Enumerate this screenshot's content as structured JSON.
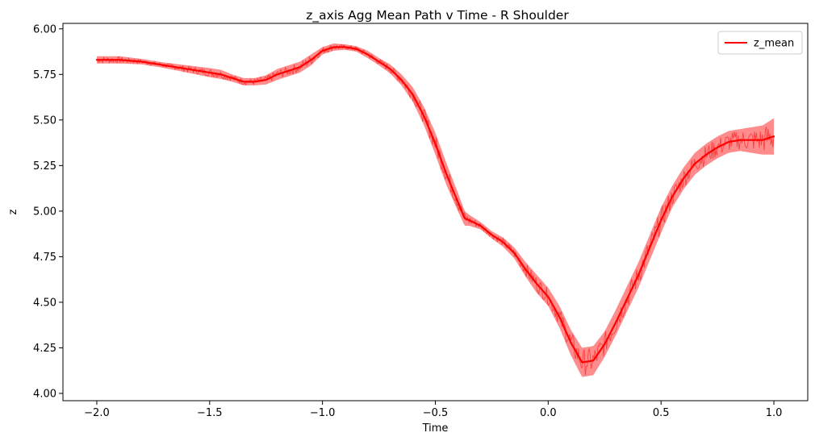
{
  "chart_data": {
    "type": "line",
    "title": "z_axis Agg Mean Path v Time - R Shoulder",
    "xlabel": "Time",
    "ylabel": "z",
    "xlim": [
      -2.15,
      1.15
    ],
    "ylim": [
      3.96,
      6.03
    ],
    "x_ticks": [
      -2.0,
      -1.5,
      -1.0,
      -0.5,
      0.0,
      0.5,
      1.0
    ],
    "x_tick_labels": [
      "−2.0",
      "−1.5",
      "−1.0",
      "−0.5",
      "0.0",
      "0.5",
      "1.0"
    ],
    "y_ticks": [
      4.0,
      4.25,
      4.5,
      4.75,
      5.0,
      5.25,
      5.5,
      5.75,
      6.0
    ],
    "y_tick_labels": [
      "4.00",
      "4.25",
      "4.50",
      "4.75",
      "5.00",
      "5.25",
      "5.50",
      "5.75",
      "6.00"
    ],
    "grid": false,
    "legend_position": "top-right",
    "series": [
      {
        "name": "z_mean",
        "color": "#ff0000",
        "x": [
          -2.0,
          -1.9,
          -1.8,
          -1.7,
          -1.6,
          -1.5,
          -1.45,
          -1.4,
          -1.35,
          -1.3,
          -1.25,
          -1.2,
          -1.15,
          -1.1,
          -1.05,
          -1.0,
          -0.95,
          -0.9,
          -0.85,
          -0.8,
          -0.75,
          -0.7,
          -0.65,
          -0.6,
          -0.55,
          -0.5,
          -0.45,
          -0.4,
          -0.37,
          -0.35,
          -0.3,
          -0.25,
          -0.2,
          -0.15,
          -0.1,
          -0.05,
          0.0,
          0.05,
          0.1,
          0.15,
          0.2,
          0.25,
          0.3,
          0.35,
          0.4,
          0.45,
          0.5,
          0.55,
          0.6,
          0.65,
          0.7,
          0.75,
          0.8,
          0.85,
          0.9,
          0.95,
          1.0
        ],
        "y": [
          5.83,
          5.83,
          5.82,
          5.8,
          5.78,
          5.76,
          5.75,
          5.73,
          5.71,
          5.71,
          5.72,
          5.75,
          5.77,
          5.79,
          5.83,
          5.88,
          5.9,
          5.9,
          5.89,
          5.86,
          5.82,
          5.78,
          5.72,
          5.64,
          5.52,
          5.37,
          5.2,
          5.05,
          4.96,
          4.95,
          4.92,
          4.87,
          4.83,
          4.77,
          4.68,
          4.6,
          4.53,
          4.42,
          4.28,
          4.17,
          4.18,
          4.27,
          4.39,
          4.52,
          4.65,
          4.8,
          4.95,
          5.08,
          5.18,
          5.26,
          5.31,
          5.35,
          5.38,
          5.39,
          5.39,
          5.39,
          5.41
        ],
        "spread": [
          0.02,
          0.02,
          0.015,
          0.015,
          0.02,
          0.025,
          0.025,
          0.02,
          0.02,
          0.02,
          0.025,
          0.03,
          0.03,
          0.03,
          0.03,
          0.02,
          0.02,
          0.015,
          0.015,
          0.02,
          0.02,
          0.025,
          0.03,
          0.04,
          0.05,
          0.06,
          0.06,
          0.05,
          0.04,
          0.03,
          0.02,
          0.02,
          0.025,
          0.03,
          0.04,
          0.05,
          0.05,
          0.06,
          0.07,
          0.08,
          0.08,
          0.07,
          0.07,
          0.07,
          0.07,
          0.07,
          0.07,
          0.06,
          0.06,
          0.06,
          0.06,
          0.06,
          0.06,
          0.06,
          0.07,
          0.08,
          0.1
        ]
      }
    ]
  }
}
